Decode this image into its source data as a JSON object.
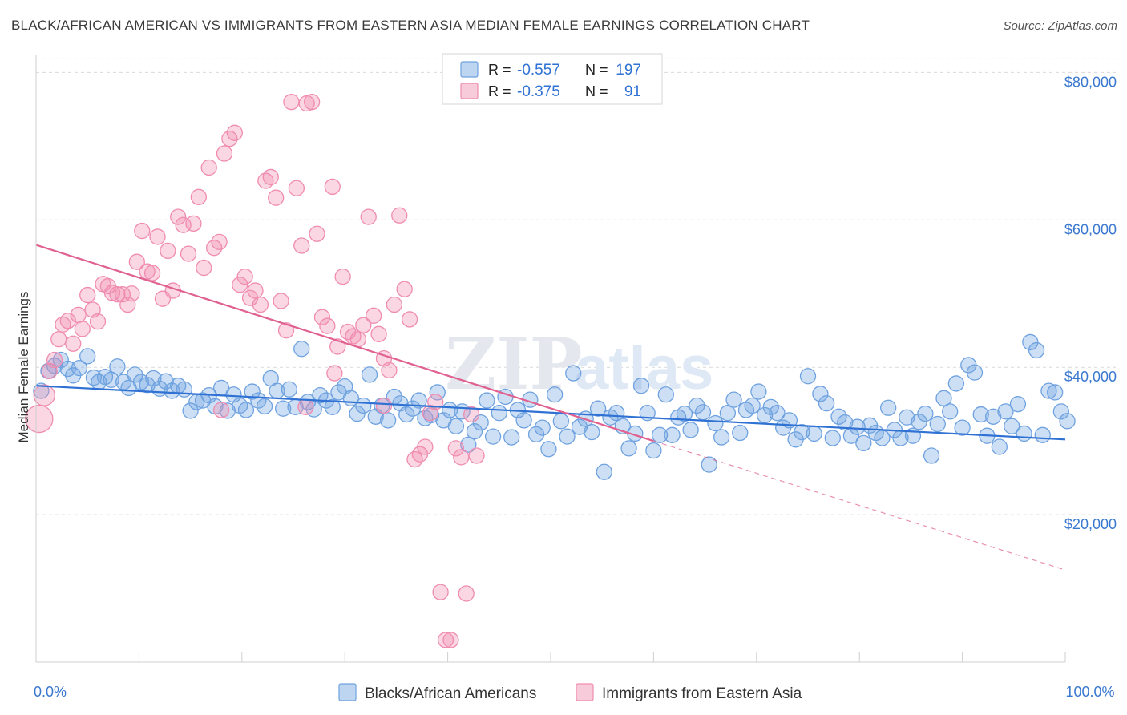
{
  "chart_data": {
    "type": "scatter",
    "title": "BLACK/AFRICAN AMERICAN VS IMMIGRANTS FROM EASTERN ASIA MEDIAN FEMALE EARNINGS CORRELATION CHART",
    "source": "Source: ZipAtlas.com",
    "watermark": "ZIPatlas",
    "xlabel": "",
    "ylabel": "Median Female Earnings",
    "xlim": [
      0,
      100
    ],
    "ylim": [
      0,
      82000
    ],
    "x_tick_labels": [
      {
        "value": 0,
        "label": "0.0%"
      },
      {
        "value": 100,
        "label": "100.0%"
      }
    ],
    "y_ticks": [
      {
        "value": 20000,
        "label": "$20,000"
      },
      {
        "value": 40000,
        "label": "$40,000"
      },
      {
        "value": 60000,
        "label": "$60,000"
      },
      {
        "value": 80000,
        "label": "$80,000"
      }
    ],
    "grid": "horizontal dashed",
    "legend": {
      "position": "top-center",
      "entries": [
        {
          "r_label": "R =",
          "r_value": "-0.557",
          "n_label": "N =",
          "n_value": "197"
        },
        {
          "r_label": "R =",
          "r_value": "-0.375",
          "n_label": "N =",
          "n_value": "91"
        }
      ]
    },
    "bottom_legend": [
      "Blacks/African Americans",
      "Immigrants from Eastern Asia"
    ],
    "series": [
      {
        "name": "Blacks/African Americans",
        "color": "#6fa2e0",
        "line_color": "#2f72d4",
        "trend": {
          "x": [
            0,
            100
          ],
          "y": [
            37500,
            30200
          ],
          "dashed_extension": false
        },
        "points": [
          [
            0.5,
            36800
          ],
          [
            1.2,
            39500
          ],
          [
            1.8,
            40200
          ],
          [
            2.4,
            41000
          ],
          [
            3.1,
            39800
          ],
          [
            3.6,
            38900
          ],
          [
            4.2,
            39900
          ],
          [
            5.0,
            41500
          ],
          [
            5.6,
            38600
          ],
          [
            6.1,
            38000
          ],
          [
            6.7,
            38700
          ],
          [
            7.3,
            38300
          ],
          [
            7.9,
            40100
          ],
          [
            8.5,
            38000
          ],
          [
            9.0,
            37200
          ],
          [
            9.6,
            39000
          ],
          [
            10.2,
            38000
          ],
          [
            10.8,
            37600
          ],
          [
            11.4,
            38500
          ],
          [
            12.0,
            37100
          ],
          [
            12.6,
            38100
          ],
          [
            13.2,
            36800
          ],
          [
            13.8,
            37500
          ],
          [
            14.4,
            37000
          ],
          [
            15.0,
            34100
          ],
          [
            15.6,
            35300
          ],
          [
            16.2,
            35500
          ],
          [
            16.8,
            36200
          ],
          [
            17.4,
            34700
          ],
          [
            18.0,
            37200
          ],
          [
            18.6,
            34100
          ],
          [
            19.2,
            36300
          ],
          [
            19.8,
            34800
          ],
          [
            20.4,
            34200
          ],
          [
            21.0,
            36700
          ],
          [
            21.6,
            35500
          ],
          [
            22.2,
            34700
          ],
          [
            22.8,
            38500
          ],
          [
            23.4,
            36800
          ],
          [
            24.0,
            34400
          ],
          [
            24.6,
            37000
          ],
          [
            25.2,
            34600
          ],
          [
            25.8,
            42500
          ],
          [
            26.4,
            35300
          ],
          [
            27.0,
            34300
          ],
          [
            27.6,
            36200
          ],
          [
            28.2,
            35500
          ],
          [
            28.8,
            34600
          ],
          [
            29.4,
            36600
          ],
          [
            30.0,
            37400
          ],
          [
            30.6,
            35800
          ],
          [
            31.2,
            33700
          ],
          [
            31.8,
            34800
          ],
          [
            32.4,
            39000
          ],
          [
            33.0,
            33300
          ],
          [
            33.6,
            34800
          ],
          [
            34.2,
            32800
          ],
          [
            34.8,
            36000
          ],
          [
            35.4,
            35100
          ],
          [
            36.0,
            33600
          ],
          [
            36.6,
            34400
          ],
          [
            37.2,
            35500
          ],
          [
            37.8,
            33100
          ],
          [
            38.4,
            33500
          ],
          [
            39.0,
            36600
          ],
          [
            39.6,
            32800
          ],
          [
            40.2,
            34200
          ],
          [
            40.8,
            32000
          ],
          [
            41.4,
            34000
          ],
          [
            42.0,
            29500
          ],
          [
            42.6,
            31300
          ],
          [
            43.2,
            32500
          ],
          [
            43.8,
            35500
          ],
          [
            44.4,
            30600
          ],
          [
            45.0,
            33800
          ],
          [
            45.6,
            36000
          ],
          [
            46.2,
            30500
          ],
          [
            46.8,
            34200
          ],
          [
            47.4,
            32800
          ],
          [
            48.0,
            35600
          ],
          [
            48.6,
            30900
          ],
          [
            49.2,
            31800
          ],
          [
            49.8,
            28900
          ],
          [
            50.4,
            36300
          ],
          [
            51.0,
            32700
          ],
          [
            51.6,
            30600
          ],
          [
            52.2,
            39200
          ],
          [
            52.8,
            31900
          ],
          [
            53.4,
            33000
          ],
          [
            54.0,
            31200
          ],
          [
            54.6,
            34400
          ],
          [
            55.2,
            25800
          ],
          [
            55.8,
            33200
          ],
          [
            56.4,
            33800
          ],
          [
            57.0,
            32000
          ],
          [
            57.6,
            29000
          ],
          [
            58.2,
            31000
          ],
          [
            58.8,
            37500
          ],
          [
            59.4,
            33800
          ],
          [
            60.0,
            28700
          ],
          [
            60.6,
            30800
          ],
          [
            61.2,
            36300
          ],
          [
            61.8,
            30800
          ],
          [
            62.4,
            33200
          ],
          [
            63.0,
            33700
          ],
          [
            63.6,
            31500
          ],
          [
            64.2,
            34800
          ],
          [
            64.8,
            33900
          ],
          [
            65.4,
            26800
          ],
          [
            66.0,
            32400
          ],
          [
            66.6,
            30500
          ],
          [
            67.2,
            33800
          ],
          [
            67.8,
            35600
          ],
          [
            68.4,
            31100
          ],
          [
            69.0,
            34200
          ],
          [
            69.6,
            34800
          ],
          [
            70.2,
            36700
          ],
          [
            70.8,
            33500
          ],
          [
            71.4,
            34600
          ],
          [
            72.0,
            33800
          ],
          [
            72.6,
            31800
          ],
          [
            73.2,
            32800
          ],
          [
            73.8,
            30200
          ],
          [
            74.4,
            31200
          ],
          [
            75.0,
            38800
          ],
          [
            75.6,
            31000
          ],
          [
            76.2,
            36400
          ],
          [
            76.8,
            35100
          ],
          [
            77.4,
            30400
          ],
          [
            78.0,
            33300
          ],
          [
            78.6,
            32500
          ],
          [
            79.2,
            30700
          ],
          [
            79.8,
            31900
          ],
          [
            80.4,
            29700
          ],
          [
            81.0,
            32100
          ],
          [
            81.6,
            31100
          ],
          [
            82.2,
            30400
          ],
          [
            82.8,
            34500
          ],
          [
            83.4,
            31500
          ],
          [
            84.0,
            30400
          ],
          [
            84.6,
            33200
          ],
          [
            85.2,
            30700
          ],
          [
            85.8,
            32600
          ],
          [
            86.4,
            33700
          ],
          [
            87.0,
            28000
          ],
          [
            87.6,
            32300
          ],
          [
            88.2,
            35800
          ],
          [
            88.8,
            34000
          ],
          [
            89.4,
            37800
          ],
          [
            90.0,
            31800
          ],
          [
            90.6,
            40300
          ],
          [
            91.2,
            39300
          ],
          [
            91.8,
            33600
          ],
          [
            92.4,
            30700
          ],
          [
            93.0,
            33300
          ],
          [
            93.6,
            29200
          ],
          [
            94.2,
            34000
          ],
          [
            94.8,
            32000
          ],
          [
            95.4,
            35000
          ],
          [
            96.0,
            31000
          ],
          [
            96.6,
            43400
          ],
          [
            97.2,
            42300
          ],
          [
            97.8,
            30800
          ],
          [
            98.4,
            36800
          ],
          [
            99.0,
            36600
          ],
          [
            99.6,
            34000
          ],
          [
            100.2,
            32700
          ]
        ]
      },
      {
        "name": "Immigrants from Eastern Asia",
        "color": "#f08cb0",
        "line_color": "#e0608f",
        "trend": {
          "x": [
            0,
            60
          ],
          "y": [
            56600,
            30000
          ],
          "dashed_extension": true,
          "dash_end": [
            100,
            12500
          ]
        },
        "points": [
          [
            0.3,
            33000
          ],
          [
            0.8,
            36200
          ],
          [
            1.3,
            39500
          ],
          [
            1.8,
            41000
          ],
          [
            2.2,
            43800
          ],
          [
            2.6,
            45800
          ],
          [
            3.1,
            46300
          ],
          [
            3.6,
            43200
          ],
          [
            4.1,
            47100
          ],
          [
            4.5,
            45200
          ],
          [
            5.0,
            49800
          ],
          [
            5.5,
            47800
          ],
          [
            6.0,
            46200
          ],
          [
            6.5,
            51300
          ],
          [
            7.0,
            51000
          ],
          [
            7.4,
            50100
          ],
          [
            7.9,
            49900
          ],
          [
            8.4,
            49900
          ],
          [
            8.9,
            48500
          ],
          [
            9.3,
            50000
          ],
          [
            9.8,
            54300
          ],
          [
            10.3,
            58500
          ],
          [
            10.8,
            53000
          ],
          [
            11.3,
            52800
          ],
          [
            11.8,
            57700
          ],
          [
            12.3,
            49300
          ],
          [
            12.8,
            55800
          ],
          [
            13.3,
            50400
          ],
          [
            13.8,
            60400
          ],
          [
            14.3,
            59300
          ],
          [
            14.8,
            55400
          ],
          [
            15.3,
            59500
          ],
          [
            15.8,
            63100
          ],
          [
            16.3,
            53500
          ],
          [
            16.8,
            67100
          ],
          [
            17.3,
            56200
          ],
          [
            17.8,
            57000
          ],
          [
            18.3,
            69000
          ],
          [
            18.8,
            71000
          ],
          [
            19.3,
            71800
          ],
          [
            19.8,
            51200
          ],
          [
            20.3,
            52300
          ],
          [
            20.8,
            49400
          ],
          [
            21.3,
            50400
          ],
          [
            21.8,
            48500
          ],
          [
            22.3,
            65300
          ],
          [
            22.8,
            65800
          ],
          [
            23.3,
            63000
          ],
          [
            23.8,
            49000
          ],
          [
            24.3,
            45000
          ],
          [
            24.8,
            76000
          ],
          [
            25.3,
            64300
          ],
          [
            25.8,
            56500
          ],
          [
            26.3,
            75800
          ],
          [
            26.8,
            76000
          ],
          [
            27.3,
            58100
          ],
          [
            27.8,
            46800
          ],
          [
            28.3,
            45600
          ],
          [
            28.8,
            64500
          ],
          [
            29.3,
            42800
          ],
          [
            29.8,
            52300
          ],
          [
            30.3,
            44800
          ],
          [
            30.8,
            44200
          ],
          [
            31.3,
            43800
          ],
          [
            31.8,
            45700
          ],
          [
            32.3,
            60400
          ],
          [
            32.8,
            47000
          ],
          [
            33.3,
            44500
          ],
          [
            33.8,
            41200
          ],
          [
            34.3,
            39600
          ],
          [
            34.8,
            48500
          ],
          [
            35.3,
            60600
          ],
          [
            35.8,
            50600
          ],
          [
            36.3,
            46500
          ],
          [
            36.8,
            27500
          ],
          [
            37.3,
            28200
          ],
          [
            37.8,
            29200
          ],
          [
            38.3,
            33800
          ],
          [
            38.8,
            35300
          ],
          [
            39.3,
            9500
          ],
          [
            39.8,
            3000
          ],
          [
            40.3,
            3000
          ],
          [
            40.8,
            29000
          ],
          [
            41.3,
            27800
          ],
          [
            41.8,
            9300
          ],
          [
            42.3,
            33600
          ],
          [
            42.8,
            28000
          ],
          [
            18.0,
            34200
          ],
          [
            26.2,
            34600
          ],
          [
            29.0,
            39200
          ],
          [
            33.8,
            34800
          ]
        ]
      }
    ]
  }
}
